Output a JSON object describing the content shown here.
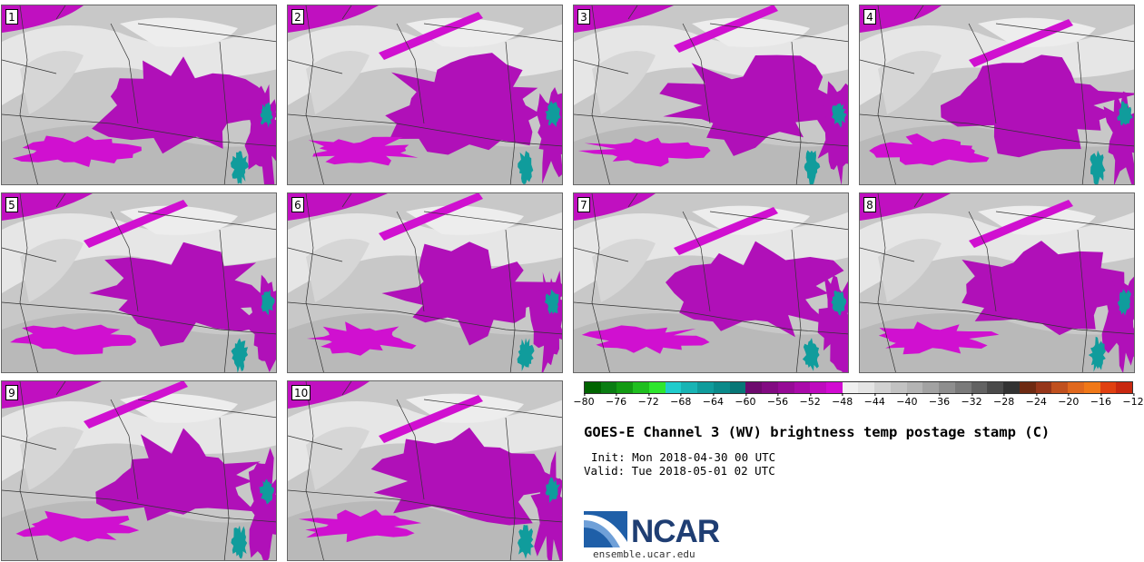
{
  "panels": [
    {
      "label": "1"
    },
    {
      "label": "2"
    },
    {
      "label": "3"
    },
    {
      "label": "4"
    },
    {
      "label": "5"
    },
    {
      "label": "6"
    },
    {
      "label": "7"
    },
    {
      "label": "8"
    },
    {
      "label": "9"
    },
    {
      "label": "10"
    }
  ],
  "colorbar": {
    "colors": [
      "#006400",
      "#0a7d12",
      "#129a12",
      "#1fbf1f",
      "#2ee62e",
      "#20cccc",
      "#18b4b4",
      "#109c9c",
      "#0a8a8a",
      "#087777",
      "#6e0a6e",
      "#820a82",
      "#960a96",
      "#aa0aaa",
      "#be0abe",
      "#d20ad2",
      "#f0f0f0",
      "#e4e4e4",
      "#d2d2d2",
      "#c2c2c2",
      "#b4b4b4",
      "#a2a2a2",
      "#8e8e8e",
      "#7a7a7a",
      "#626262",
      "#4a4a4a",
      "#323232",
      "#6e2a12",
      "#96361a",
      "#c0501e",
      "#e0681e",
      "#f07818",
      "#e04010",
      "#c82810"
    ],
    "ticks": [
      "−80",
      "−76",
      "−72",
      "−68",
      "−64",
      "−60",
      "−56",
      "−52",
      "−48",
      "−44",
      "−40",
      "−36",
      "−32",
      "−28",
      "−24",
      "−20",
      "−16",
      "−12"
    ]
  },
  "title": "GOES-E Channel 3 (WV) brightness temp postage stamp (C)",
  "init": "Init: Mon 2018-04-30 00 UTC",
  "valid": "Valid: Tue 2018-05-01 02 UTC",
  "logo": {
    "text": "NCAR",
    "url": "ensemble.ucar.edu"
  }
}
